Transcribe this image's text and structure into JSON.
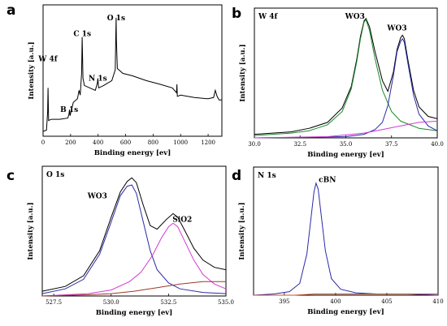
{
  "chart_data": [
    {
      "panel": "a",
      "type": "line",
      "title": "",
      "xlabel": "Binding energy [ev]",
      "ylabel": "Intensity [a.u.]",
      "xlim": [
        0,
        1300
      ],
      "ylim": [
        0,
        1
      ],
      "xticks": [
        "0",
        "200",
        "400",
        "600",
        "800",
        "1000",
        "1200"
      ],
      "annotations": [
        {
          "text": "W 4f",
          "x": 35,
          "y": 0.62
        },
        {
          "text": "B 1s",
          "x": 190,
          "y": 0.2
        },
        {
          "text": "C 1s",
          "x": 285,
          "y": 0.83
        },
        {
          "text": "N 1s",
          "x": 398,
          "y": 0.46
        },
        {
          "text": "O 1s",
          "x": 531,
          "y": 0.96
        }
      ],
      "series": [
        {
          "color": "#000000",
          "x": [
            0,
            25,
            33,
            36,
            40,
            60,
            120,
            180,
            188,
            192,
            196,
            220,
            250,
            262,
            270,
            280,
            284,
            286,
            290,
            300,
            340,
            380,
            395,
            398,
            400,
            404,
            440,
            500,
            525,
            529,
            531,
            533,
            540,
            580,
            650,
            750,
            850,
            940,
            970,
            973,
            976,
            1000,
            1100,
            1200,
            1240,
            1252,
            1265,
            1280,
            1300
          ],
          "y": [
            0.04,
            0.05,
            0.2,
            0.4,
            0.13,
            0.14,
            0.14,
            0.15,
            0.18,
            0.22,
            0.17,
            0.28,
            0.31,
            0.38,
            0.34,
            0.52,
            0.82,
            0.72,
            0.48,
            0.42,
            0.4,
            0.38,
            0.44,
            0.48,
            0.45,
            0.4,
            0.42,
            0.46,
            0.55,
            0.84,
            0.98,
            0.8,
            0.56,
            0.52,
            0.5,
            0.46,
            0.43,
            0.4,
            0.36,
            0.43,
            0.33,
            0.34,
            0.32,
            0.31,
            0.32,
            0.38,
            0.33,
            0.3,
            0.3
          ]
        }
      ]
    },
    {
      "panel": "b",
      "type": "line",
      "title": "W 4f",
      "xlabel": "Binding energy [ev]",
      "ylabel": "Intensity [a.u.]",
      "xlim": [
        30,
        40
      ],
      "ylim": [
        0,
        1
      ],
      "xticks": [
        "30.0",
        "32.5",
        "35.0",
        "37.5",
        "40.0"
      ],
      "annotations": [
        {
          "text": "WO3",
          "x": 35.5,
          "y": 1.0
        },
        {
          "text": "WO3",
          "x": 37.8,
          "y": 0.9
        }
      ],
      "series": [
        {
          "color": "#000000",
          "x": [
            30,
            32,
            33,
            34,
            34.8,
            35.3,
            35.6,
            35.8,
            36.0,
            36.1,
            36.3,
            36.6,
            37.0,
            37.3,
            37.6,
            37.8,
            38.0,
            38.1,
            38.2,
            38.4,
            38.7,
            39.0,
            39.5,
            40.0
          ],
          "y": [
            0.03,
            0.05,
            0.08,
            0.13,
            0.25,
            0.43,
            0.66,
            0.85,
            0.98,
            1.0,
            0.93,
            0.72,
            0.48,
            0.39,
            0.55,
            0.74,
            0.84,
            0.86,
            0.83,
            0.65,
            0.4,
            0.26,
            0.18,
            0.16
          ]
        },
        {
          "color": "#1b8a2a",
          "x": [
            30,
            32,
            33,
            34,
            34.8,
            35.3,
            35.6,
            35.8,
            36.0,
            36.1,
            36.3,
            36.6,
            37.0,
            37.5,
            38.0,
            39.0,
            40.0
          ],
          "y": [
            0.02,
            0.04,
            0.06,
            0.11,
            0.22,
            0.41,
            0.64,
            0.83,
            0.97,
            0.99,
            0.9,
            0.66,
            0.4,
            0.22,
            0.14,
            0.08,
            0.06
          ]
        },
        {
          "color": "#2a2aa8",
          "x": [
            30,
            35,
            36,
            36.6,
            37.0,
            37.3,
            37.6,
            37.8,
            38.0,
            38.1,
            38.2,
            38.4,
            38.7,
            39.0,
            39.5,
            40.0
          ],
          "y": [
            0.0,
            0.01,
            0.03,
            0.07,
            0.13,
            0.27,
            0.52,
            0.72,
            0.81,
            0.83,
            0.8,
            0.62,
            0.36,
            0.2,
            0.1,
            0.06
          ]
        },
        {
          "color": "#d23ad2",
          "x": [
            30,
            34,
            36,
            37,
            38,
            39,
            40
          ],
          "y": [
            0.0,
            0.01,
            0.04,
            0.07,
            0.1,
            0.13,
            0.14
          ]
        }
      ]
    },
    {
      "panel": "c",
      "type": "line",
      "title": "O 1s",
      "xlabel": "Binding energy [ev]",
      "ylabel": "Intensity [a.u.]",
      "xlim": [
        527,
        535
      ],
      "ylim": [
        0,
        1
      ],
      "xticks": [
        "527.5",
        "530.0",
        "532.5",
        "535.0"
      ],
      "annotations": [
        {
          "text": "WO3",
          "x": 529.4,
          "y": 0.82
        },
        {
          "text": "SiO2",
          "x": 533.1,
          "y": 0.62
        }
      ],
      "series": [
        {
          "color": "#000000",
          "x": [
            527,
            528,
            528.8,
            529.5,
            530.0,
            530.4,
            530.7,
            530.9,
            531.1,
            531.4,
            531.7,
            532.0,
            532.4,
            532.7,
            532.9,
            533.2,
            533.6,
            534.0,
            534.5,
            535.0
          ],
          "y": [
            0.04,
            0.08,
            0.17,
            0.38,
            0.66,
            0.87,
            0.96,
            0.99,
            0.95,
            0.76,
            0.59,
            0.56,
            0.64,
            0.69,
            0.66,
            0.55,
            0.4,
            0.3,
            0.24,
            0.22
          ]
        },
        {
          "color": "#2a2aa8",
          "x": [
            527,
            528,
            528.8,
            529.5,
            530.0,
            530.4,
            530.7,
            530.9,
            531.1,
            531.4,
            531.7,
            532.0,
            532.5,
            533.0,
            534.0,
            535.0
          ],
          "y": [
            0.02,
            0.06,
            0.14,
            0.35,
            0.62,
            0.84,
            0.92,
            0.93,
            0.86,
            0.62,
            0.38,
            0.22,
            0.11,
            0.06,
            0.03,
            0.02
          ]
        },
        {
          "color": "#d23ad2",
          "x": [
            527,
            529,
            530,
            530.8,
            531.3,
            531.8,
            532.2,
            532.5,
            532.7,
            532.9,
            533.2,
            533.6,
            534.0,
            534.5,
            535.0
          ],
          "y": [
            0.0,
            0.02,
            0.05,
            0.12,
            0.2,
            0.34,
            0.49,
            0.58,
            0.61,
            0.58,
            0.46,
            0.3,
            0.18,
            0.1,
            0.06
          ]
        },
        {
          "color": "#9a3a2a",
          "x": [
            527,
            529,
            530,
            531,
            532,
            533,
            534,
            535
          ],
          "y": [
            0.0,
            0.01,
            0.02,
            0.04,
            0.07,
            0.1,
            0.12,
            0.12
          ]
        }
      ]
    },
    {
      "panel": "d",
      "type": "line",
      "title": "N 1s",
      "xlabel": "Binding energy [ev]",
      "ylabel": "Intensity [a.u.]",
      "xlim": [
        392,
        410
      ],
      "ylim": [
        0,
        1
      ],
      "xticks": [
        "395",
        "400",
        "405",
        "410"
      ],
      "annotations": [
        {
          "text": "cBN",
          "x": 399.2,
          "y": 0.96
        }
      ],
      "series": [
        {
          "color": "#2a2aa8",
          "x": [
            392,
            394,
            395.5,
            396.5,
            397.2,
            397.6,
            397.9,
            398.1,
            398.3,
            398.6,
            399.0,
            399.6,
            400.5,
            402,
            404,
            407,
            410
          ],
          "y": [
            0.0,
            0.01,
            0.03,
            0.1,
            0.35,
            0.65,
            0.88,
            0.95,
            0.9,
            0.68,
            0.38,
            0.14,
            0.05,
            0.02,
            0.01,
            0.01,
            0.0
          ]
        },
        {
          "color": "#c8502a",
          "x": [
            392,
            396,
            398,
            400,
            404,
            410
          ],
          "y": [
            0.0,
            0.0,
            0.01,
            0.01,
            0.01,
            0.01
          ]
        }
      ]
    }
  ]
}
